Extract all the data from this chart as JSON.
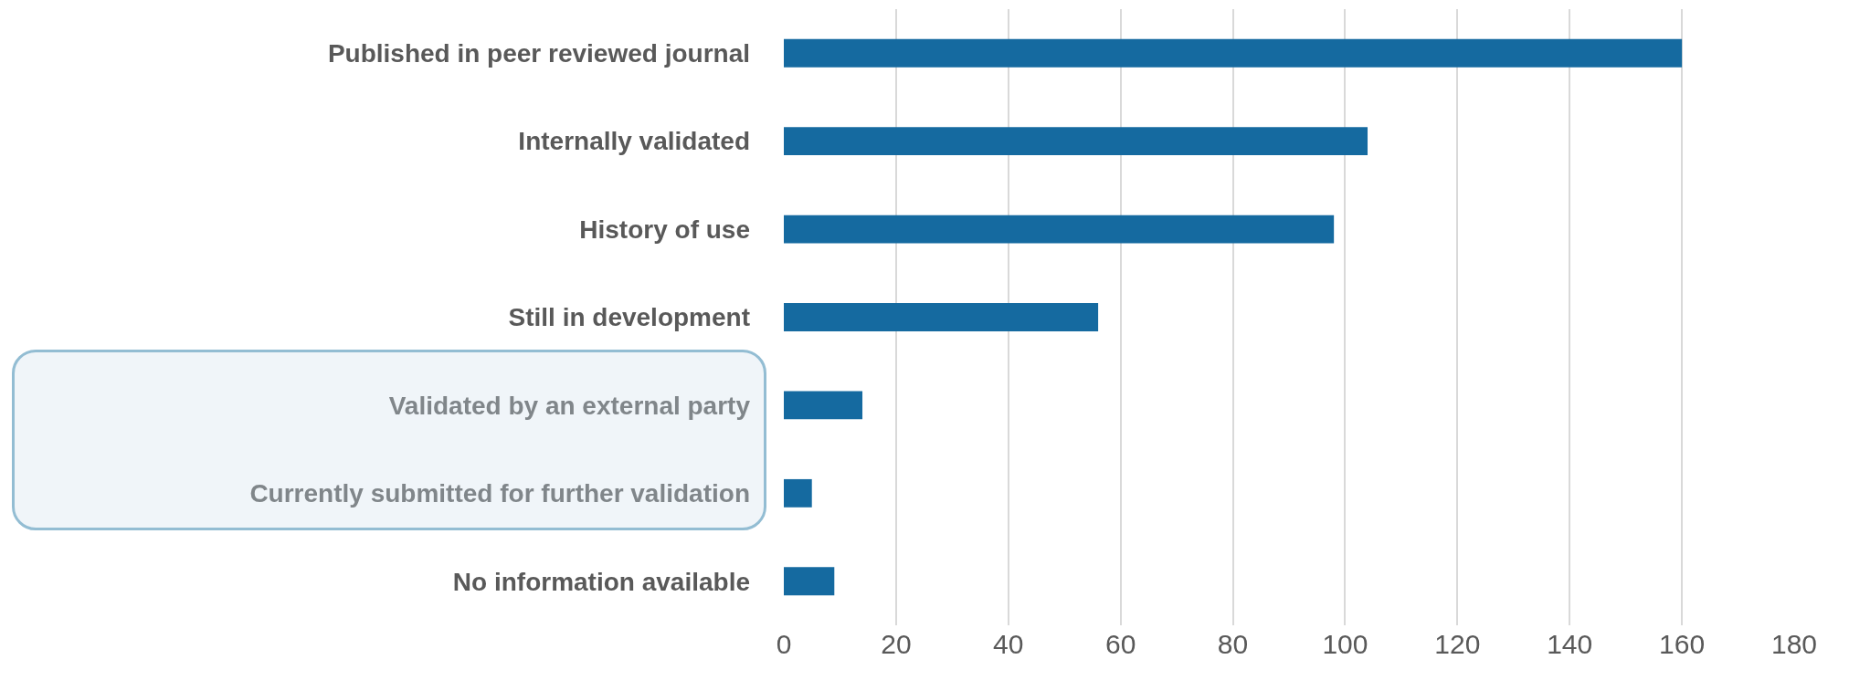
{
  "chart_data": {
    "type": "bar",
    "orientation": "horizontal",
    "categories": [
      "Published in peer reviewed journal",
      "Internally validated",
      "History of use",
      "Still in development",
      "Validated by an external party",
      "Currently submitted for further validation",
      "No information available"
    ],
    "values": [
      160,
      104,
      98,
      56,
      14,
      5,
      9
    ],
    "color": "#156aa0",
    "xlim": [
      0,
      180
    ],
    "xticks": [
      0,
      20,
      40,
      60,
      80,
      100,
      120,
      140,
      160,
      180
    ],
    "grid": "x"
  }
}
